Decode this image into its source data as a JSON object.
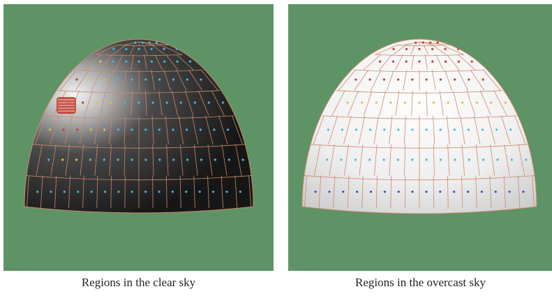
{
  "figure": {
    "panels": [
      {
        "id": "clear",
        "caption": "Regions in the clear sky",
        "background_color": "#5e9366",
        "dome_style": "dark-with-bright-sun-spot",
        "region_line_color": "#c98a6a"
      },
      {
        "id": "overcast",
        "caption": "Regions in the overcast sky",
        "background_color": "#5e9366",
        "dome_style": "bright-white",
        "region_line_color": "#c98a6a"
      }
    ],
    "point_colors": {
      "high": "#d0382a",
      "mid": "#e2c23a",
      "low": "#4fb6d8",
      "lowest": "#3a4fb8"
    }
  }
}
